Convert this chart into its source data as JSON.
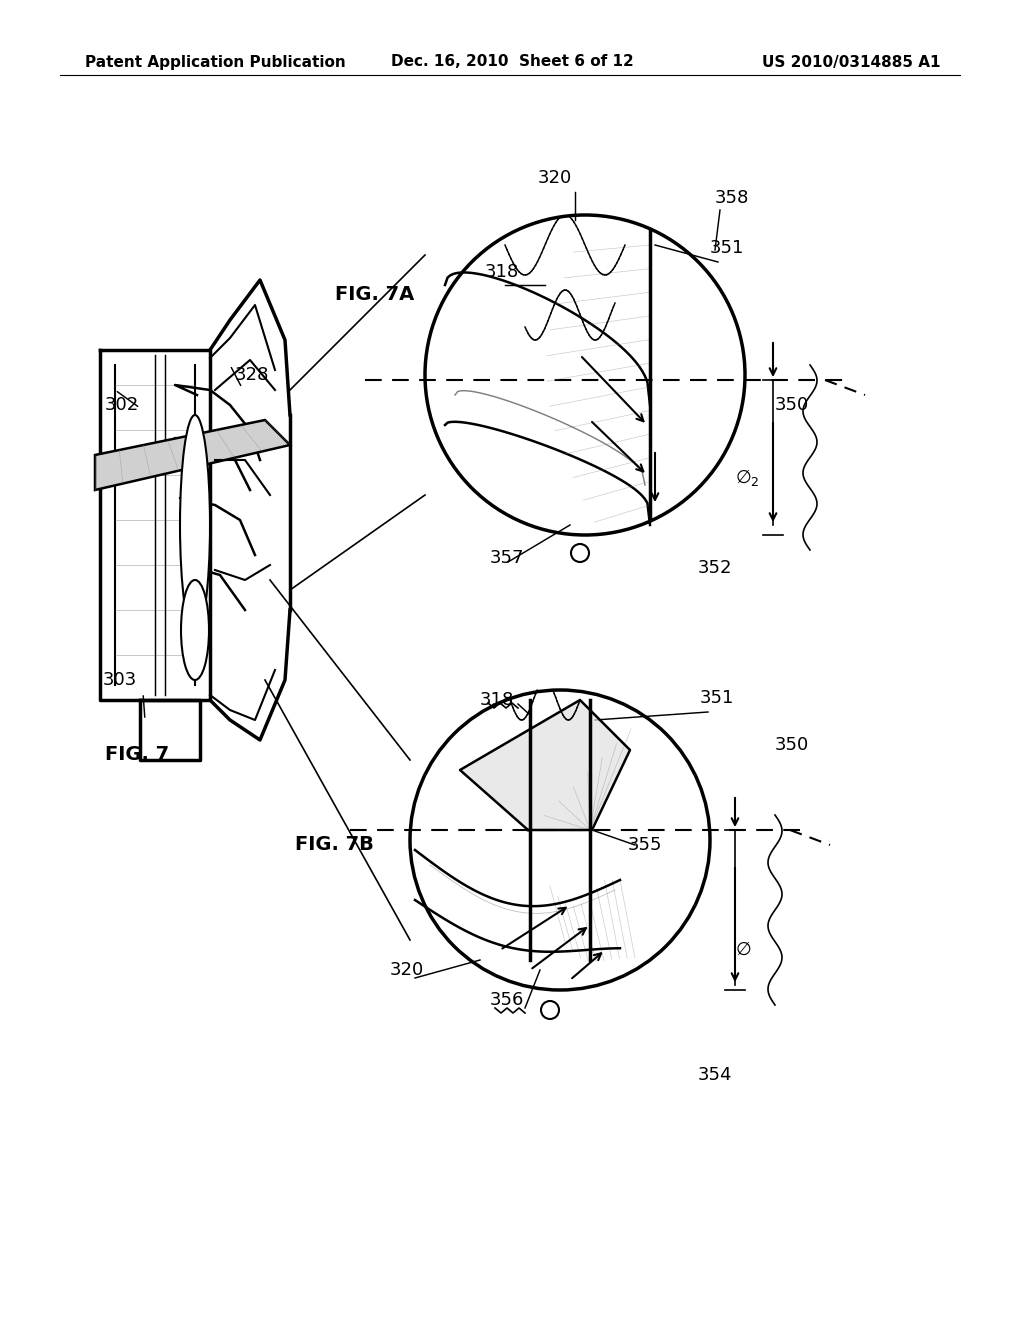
{
  "bg_color": "#ffffff",
  "header_left": "Patent Application Publication",
  "header_center": "Dec. 16, 2010  Sheet 6 of 12",
  "header_right": "US 2010/0314885 A1",
  "fig7_label": "FIG. 7",
  "fig7a_label": "FIG. 7A",
  "fig7b_label": "FIG. 7B",
  "font_size_header": 11,
  "font_size_label": 13,
  "font_size_fig": 14
}
